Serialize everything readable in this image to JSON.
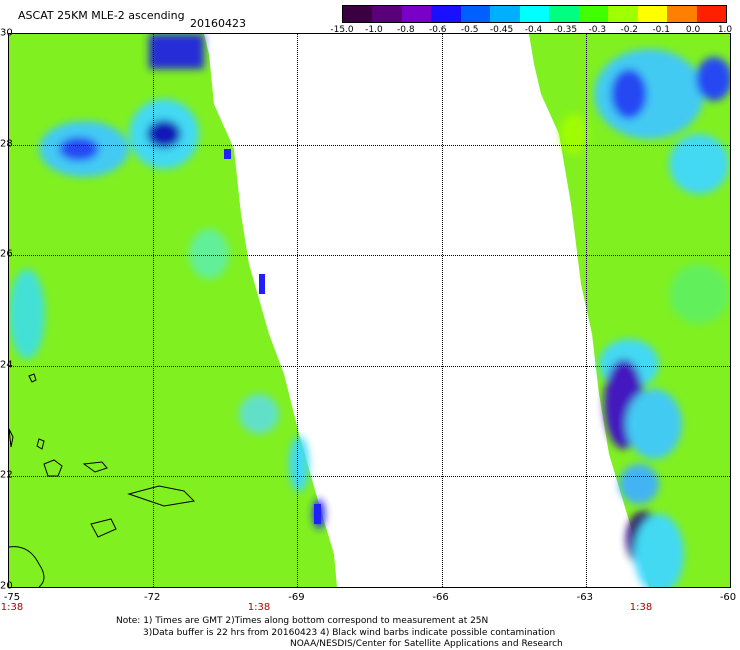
{
  "header": {
    "title": "ASCAT 25KM MLE-2 ascending",
    "date": "20160423"
  },
  "colorbar": {
    "labels": [
      "-15.0",
      "-1.0",
      "-0.8",
      "-0.6",
      "-0.5",
      "-0.45",
      "-0.4",
      "-0.35",
      "-0.3",
      "-0.2",
      "-0.1",
      "0.0",
      "1.0"
    ],
    "colors": [
      "#3a0040",
      "#5a007a",
      "#7a00c8",
      "#1a10ff",
      "#0060ff",
      "#00b0ff",
      "#00ffff",
      "#00ff80",
      "#40ff00",
      "#a0ff00",
      "#ffff00",
      "#ff8000",
      "#ff2000"
    ]
  },
  "map": {
    "lat_labels": [
      "30",
      "28",
      "26",
      "24",
      "22",
      "20"
    ],
    "lon_labels": [
      "-75",
      "-72",
      "-69",
      "-66",
      "-63",
      "-60"
    ],
    "time_labels": [
      "1:38",
      "1:38",
      "1:38"
    ],
    "lon_range": [
      -75,
      -60
    ],
    "lat_range": [
      20,
      30
    ]
  },
  "notes": {
    "line1": "Note: 1) Times are GMT 2)Times along bottom correspond to measurement at 25N",
    "line2": "3)Data buffer is 22 hrs from 20160423 4) Black wind barbs indicate possible contamination",
    "line3": "NOAA/NESDIS/Center for Satellite Applications and Research"
  }
}
